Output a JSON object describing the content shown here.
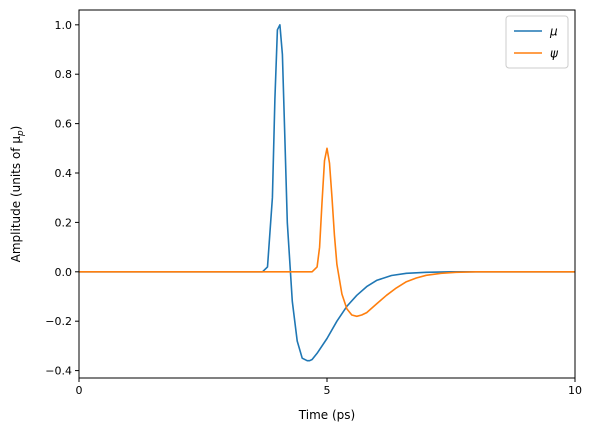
{
  "chart_data": {
    "type": "line",
    "xlabel": "Time (ps)",
    "ylabel": "Amplitude (units of μ",
    "ylabel_sub": "p",
    "ylabel_close": ")",
    "xlim": [
      0,
      10
    ],
    "ylim": [
      -0.43,
      1.06
    ],
    "xticks": [
      0,
      5,
      10
    ],
    "xtick_labels": [
      "0",
      "5",
      "10"
    ],
    "yticks": [
      -0.4,
      -0.2,
      0.0,
      0.2,
      0.4,
      0.6,
      0.8,
      1.0
    ],
    "ytick_labels": [
      "−0.4",
      "−0.2",
      "0.0",
      "0.2",
      "0.4",
      "0.6",
      "0.8",
      "1.0"
    ],
    "legend_position": "top-right",
    "series": [
      {
        "name": "μ",
        "color": "#1f77b4",
        "x": [
          0,
          3.7,
          3.8,
          3.9,
          3.95,
          4.0,
          4.05,
          4.1,
          4.15,
          4.2,
          4.3,
          4.4,
          4.5,
          4.6,
          4.65,
          4.7,
          4.8,
          5.0,
          5.2,
          5.4,
          5.6,
          5.8,
          6.0,
          6.3,
          6.6,
          7.0,
          7.5,
          8.0,
          10
        ],
        "y": [
          0,
          0.0,
          0.02,
          0.3,
          0.7,
          0.98,
          1.0,
          0.88,
          0.55,
          0.2,
          -0.12,
          -0.28,
          -0.35,
          -0.36,
          -0.36,
          -0.355,
          -0.33,
          -0.27,
          -0.2,
          -0.14,
          -0.095,
          -0.06,
          -0.035,
          -0.015,
          -0.006,
          -0.002,
          0.0,
          0.0,
          0.0
        ]
      },
      {
        "name": "ψ",
        "color": "#ff7f0e",
        "x": [
          0,
          4.7,
          4.8,
          4.85,
          4.9,
          4.95,
          5.0,
          5.05,
          5.1,
          5.15,
          5.2,
          5.3,
          5.4,
          5.5,
          5.6,
          5.7,
          5.8,
          6.0,
          6.2,
          6.4,
          6.6,
          6.8,
          7.0,
          7.3,
          7.6,
          8.0,
          10
        ],
        "y": [
          0,
          0.0,
          0.02,
          0.1,
          0.28,
          0.45,
          0.5,
          0.44,
          0.3,
          0.15,
          0.03,
          -0.09,
          -0.15,
          -0.175,
          -0.18,
          -0.175,
          -0.165,
          -0.13,
          -0.095,
          -0.065,
          -0.04,
          -0.025,
          -0.014,
          -0.006,
          -0.002,
          0.0,
          0.0
        ]
      }
    ]
  }
}
